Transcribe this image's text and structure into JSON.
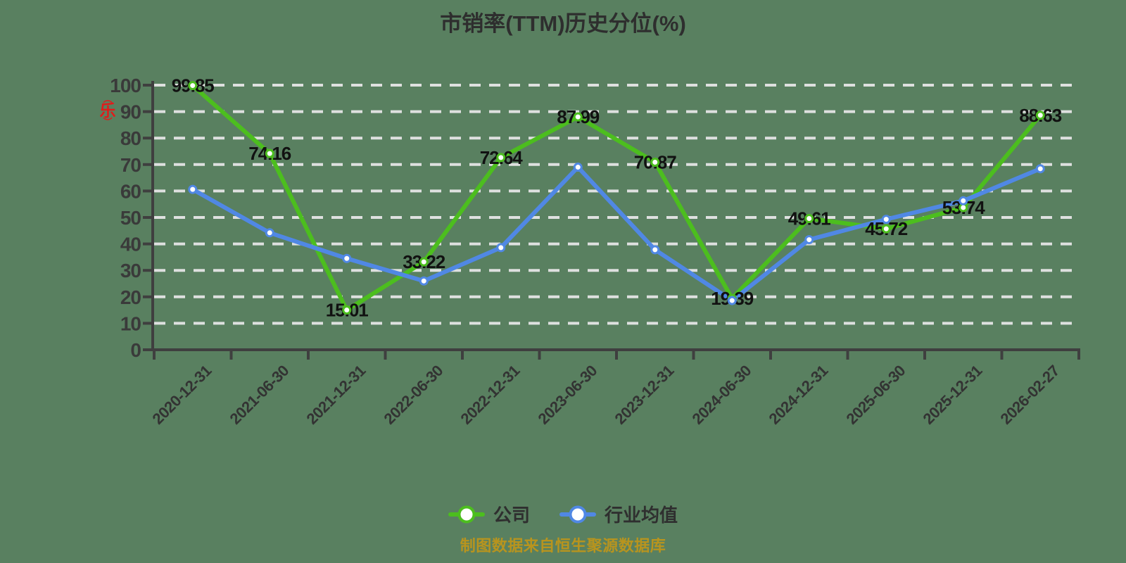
{
  "title": "市销率(TTM)历史分位(%)",
  "watermark": {
    "curve_top": "︵",
    "text": "乐",
    "curve_bottom": "︶",
    "color": "#e11b1b"
  },
  "footer": {
    "note": "制图数据来自恒生聚源数据库",
    "color": "#b8941e"
  },
  "colors": {
    "background": "#598060",
    "axis": "#3f3f3f",
    "gridline": "#e6e6e6",
    "tick_label": "#3a3a3a",
    "data_label": "#111111",
    "company_green": "#4cbe1e",
    "industry_blue": "#5088e4"
  },
  "chart_data": {
    "type": "line",
    "title": "市销率(TTM)历史分位(%)",
    "categories": [
      "2020-12-31",
      "2021-06-30",
      "2021-12-31",
      "2022-06-30",
      "2022-12-31",
      "2023-06-30",
      "2023-12-31",
      "2024-06-30",
      "2024-12-31",
      "2025-06-30",
      "2025-12-31",
      "2026-02-27"
    ],
    "series": [
      {
        "name": "公司",
        "color": "#4cbe1e",
        "values": [
          99.85,
          74.16,
          15.01,
          33.22,
          72.64,
          87.99,
          70.87,
          19.39,
          49.61,
          45.72,
          53.74,
          88.63
        ],
        "labels_shown": true
      },
      {
        "name": "行业均值",
        "color": "#5088e4",
        "values": [
          60.6,
          44.2,
          34.5,
          26.0,
          38.6,
          69.0,
          37.8,
          18.6,
          41.6,
          49.3,
          56.3,
          68.4
        ],
        "labels_shown": false
      }
    ],
    "xlabel": "",
    "ylabel": "",
    "ylim": [
      0,
      100
    ],
    "y_ticks": [
      0,
      10,
      20,
      30,
      40,
      50,
      60,
      70,
      80,
      90,
      100
    ],
    "grid": "horizontal-dashed",
    "legend_position": "bottom",
    "x_label_rotation": -45
  }
}
